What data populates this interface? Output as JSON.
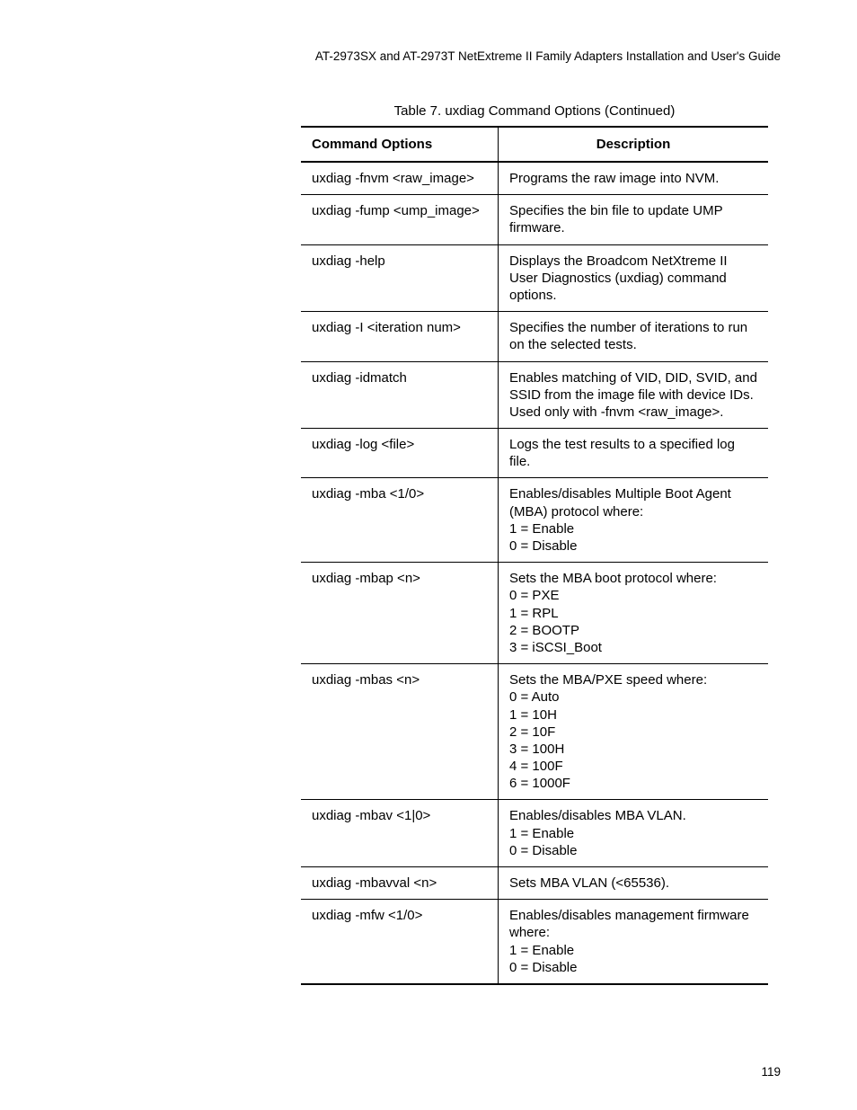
{
  "header": "AT-2973SX and AT-2973T NetExtreme II Family Adapters Installation and User's Guide",
  "table_caption": "Table 7. uxdiag Command Options (Continued)",
  "columns": {
    "cmd": "Command Options",
    "desc": "Description"
  },
  "rows": [
    {
      "cmd": "uxdiag -fnvm <raw_image>",
      "desc": "Programs the raw image into NVM."
    },
    {
      "cmd": "uxdiag -fump <ump_image>",
      "desc": "Specifies the bin file to update UMP firmware."
    },
    {
      "cmd": "uxdiag -help",
      "desc": "Displays the Broadcom NetXtreme II User Diagnostics (uxdiag) command options."
    },
    {
      "cmd": "uxdiag -I <iteration num>",
      "desc": "Specifies the number of iterations to run on the selected tests."
    },
    {
      "cmd": "uxdiag -idmatch",
      "desc": "Enables matching of VID, DID, SVID, and SSID from the image file with device IDs. Used only with -fnvm <raw_image>."
    },
    {
      "cmd": "uxdiag -log <file>",
      "desc": "Logs the test results to a specified log file."
    },
    {
      "cmd": "uxdiag -mba <1/0>",
      "desc": "Enables/disables Multiple Boot Agent (MBA) protocol where:\n1 = Enable\n0 = Disable"
    },
    {
      "cmd": "uxdiag -mbap <n>",
      "desc": "Sets the MBA boot protocol where:\n0 = PXE\n1 = RPL\n2 = BOOTP\n3 = iSCSI_Boot"
    },
    {
      "cmd": "uxdiag -mbas <n>",
      "desc": "Sets the MBA/PXE speed where:\n0 = Auto\n1 = 10H\n2 = 10F\n3 = 100H\n4 = 100F\n6 = 1000F"
    },
    {
      "cmd": "uxdiag -mbav <1|0>",
      "desc": "Enables/disables MBA VLAN.\n1 = Enable\n0 = Disable"
    },
    {
      "cmd": "uxdiag -mbavval <n>",
      "desc": "Sets MBA VLAN (<65536)."
    },
    {
      "cmd": "uxdiag -mfw <1/0>",
      "desc": "Enables/disables management firmware where:\n1 = Enable\n0 = Disable"
    }
  ],
  "page_number": "119"
}
